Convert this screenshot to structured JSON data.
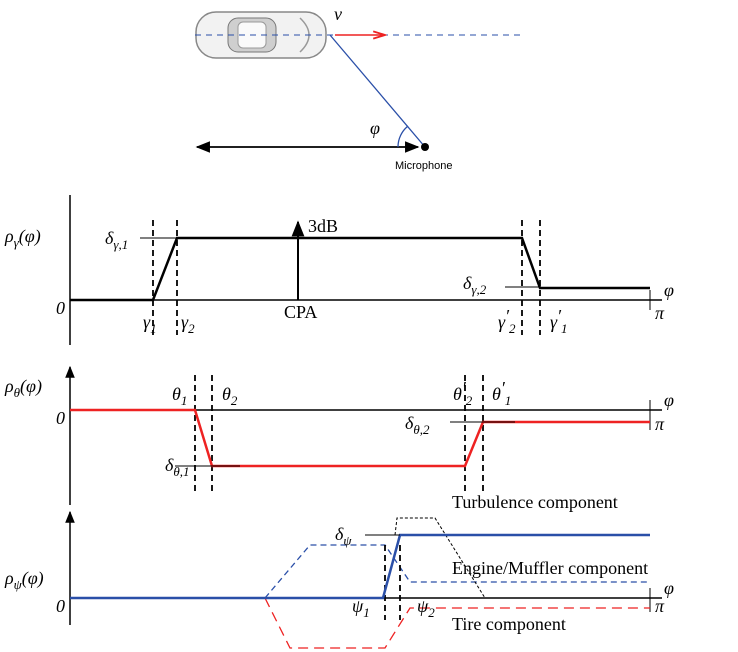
{
  "top": {
    "velocity": "v",
    "angle": "φ",
    "microphone": "Microphone"
  },
  "panels": [
    {
      "ylabel": {
        "base": "ρ",
        "sub": "γ",
        "rest": "(φ)"
      },
      "origin": "0",
      "xaxis": "φ",
      "end": "π",
      "labels": [
        {
          "base": "δ",
          "sub": "γ,1"
        },
        "3dB",
        {
          "base": "γ",
          "sub": "1"
        },
        {
          "base": "γ",
          "sub": "2"
        },
        "CPA",
        {
          "base": "δ",
          "sub": "γ,2"
        },
        {
          "base": "γ",
          "prime": "′",
          "sub": "2"
        },
        {
          "base": "γ",
          "prime": "′",
          "sub": "1"
        }
      ]
    },
    {
      "ylabel": {
        "base": "ρ",
        "sub": "θ",
        "rest": "(φ)"
      },
      "origin": "0",
      "xaxis": "φ",
      "end": "π",
      "labels": [
        {
          "base": "θ",
          "sub": "1"
        },
        {
          "base": "θ",
          "sub": "2"
        },
        {
          "base": "θ",
          "prime": "′",
          "sub": "2"
        },
        {
          "base": "θ",
          "prime": "′",
          "sub": "1"
        },
        {
          "base": "δ",
          "sub": "θ,2"
        },
        {
          "base": "δ",
          "sub": "θ,1"
        },
        "Turbulence component"
      ]
    },
    {
      "ylabel": {
        "base": "ρ",
        "sub": "ψ",
        "rest": "(φ)"
      },
      "origin": "0",
      "xaxis": "φ",
      "end": "π",
      "labels": [
        {
          "base": "δ",
          "sub": "ψ"
        },
        {
          "base": "ψ",
          "sub": "1"
        },
        {
          "base": "ψ",
          "sub": "2"
        },
        "Engine/Muffler component",
        "Tire component"
      ]
    }
  ]
}
